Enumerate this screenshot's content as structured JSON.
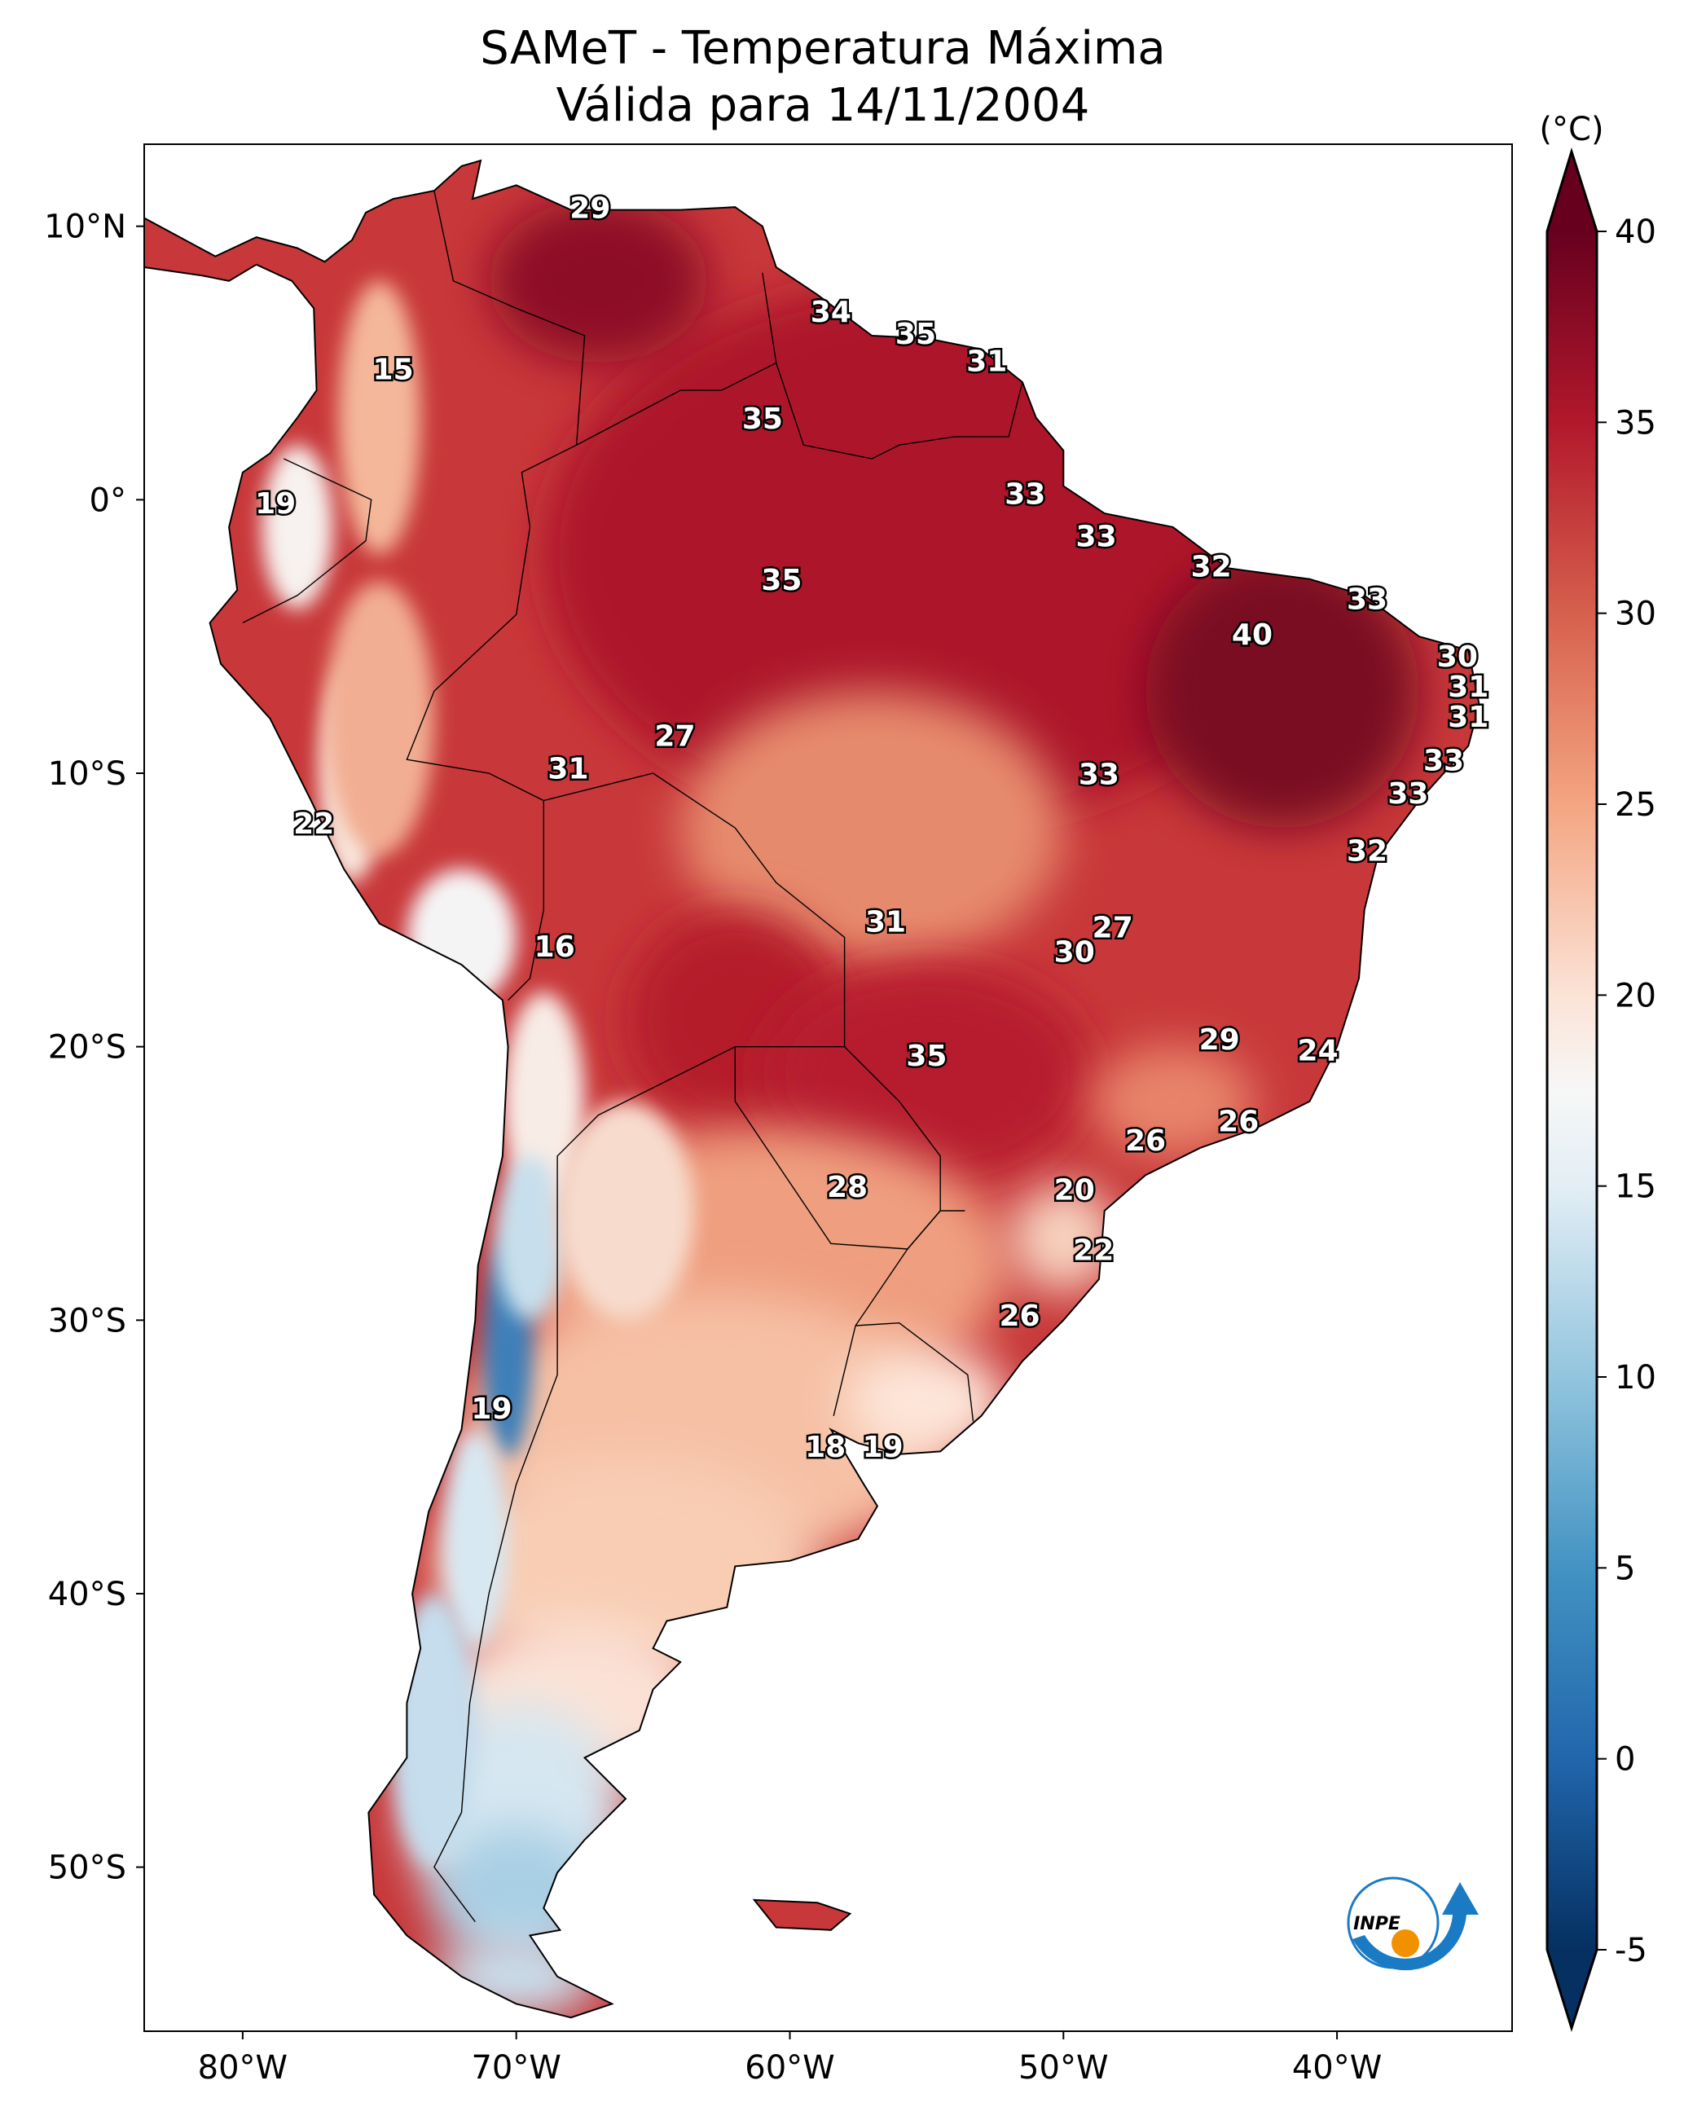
{
  "title": {
    "line1": "SAMeT - Temperatura Máxima",
    "line2": "Válida para 14/11/2004"
  },
  "chart_data": {
    "type": "heatmap",
    "map_region": "South America",
    "variable": "maximum temperature",
    "extent": {
      "lon": [
        -83.6,
        -33.6
      ],
      "lat": [
        -56,
        13
      ]
    },
    "x_ticks": [
      {
        "value": -80,
        "label": "80°W"
      },
      {
        "value": -70,
        "label": "70°W"
      },
      {
        "value": -60,
        "label": "60°W"
      },
      {
        "value": -50,
        "label": "50°W"
      },
      {
        "value": -40,
        "label": "40°W"
      }
    ],
    "y_ticks": [
      {
        "value": 10,
        "label": "10°N"
      },
      {
        "value": 0,
        "label": "0°"
      },
      {
        "value": -10,
        "label": "10°S"
      },
      {
        "value": -20,
        "label": "20°S"
      },
      {
        "value": -30,
        "label": "30°S"
      },
      {
        "value": -40,
        "label": "40°S"
      },
      {
        "value": -50,
        "label": "50°S"
      }
    ],
    "colorbar": {
      "unit": "(°C)",
      "range": [
        -5,
        40
      ],
      "extend": "both",
      "colormap": "RdBu_r",
      "ticks": [
        "40",
        "35",
        "30",
        "25",
        "20",
        "15",
        "10",
        "5",
        "0",
        "-5"
      ],
      "stops": [
        {
          "value": -5,
          "color": "#053061"
        },
        {
          "value": 0,
          "color": "#2166ac"
        },
        {
          "value": 5,
          "color": "#4393c3"
        },
        {
          "value": 10,
          "color": "#92c5de"
        },
        {
          "value": 15,
          "color": "#e3eef5"
        },
        {
          "value": 17.5,
          "color": "#f7f7f7"
        },
        {
          "value": 20,
          "color": "#fbe3d6"
        },
        {
          "value": 25,
          "color": "#f4a582"
        },
        {
          "value": 30,
          "color": "#d6604d"
        },
        {
          "value": 35,
          "color": "#b2182b"
        },
        {
          "value": 40,
          "color": "#67001f"
        }
      ]
    },
    "station_labels": [
      {
        "value": "29",
        "lon": -67.3,
        "lat": 10.6
      },
      {
        "value": "34",
        "lon": -58.5,
        "lat": 6.8
      },
      {
        "value": "35",
        "lon": -55.4,
        "lat": 6.0
      },
      {
        "value": "31",
        "lon": -52.8,
        "lat": 5.0
      },
      {
        "value": "15",
        "lon": -74.5,
        "lat": 4.7
      },
      {
        "value": "35",
        "lon": -61.0,
        "lat": 2.9
      },
      {
        "value": "19",
        "lon": -78.8,
        "lat": -0.2
      },
      {
        "value": "33",
        "lon": -51.4,
        "lat": 0.15
      },
      {
        "value": "33",
        "lon": -48.8,
        "lat": -1.4
      },
      {
        "value": "32",
        "lon": -44.6,
        "lat": -2.5
      },
      {
        "value": "35",
        "lon": -60.3,
        "lat": -3.0
      },
      {
        "value": "33",
        "lon": -38.9,
        "lat": -3.7
      },
      {
        "value": "40",
        "lon": -43.1,
        "lat": -5.0
      },
      {
        "value": "30",
        "lon": -35.6,
        "lat": -5.8
      },
      {
        "value": "31",
        "lon": -35.2,
        "lat": -6.9
      },
      {
        "value": "31",
        "lon": -35.2,
        "lat": -8.0
      },
      {
        "value": "27",
        "lon": -64.2,
        "lat": -8.7
      },
      {
        "value": "31",
        "lon": -68.1,
        "lat": -9.9
      },
      {
        "value": "33",
        "lon": -48.7,
        "lat": -10.1
      },
      {
        "value": "33",
        "lon": -36.1,
        "lat": -9.6
      },
      {
        "value": "33",
        "lon": -37.4,
        "lat": -10.8
      },
      {
        "value": "22",
        "lon": -77.4,
        "lat": -11.9
      },
      {
        "value": "32",
        "lon": -38.9,
        "lat": -12.9
      },
      {
        "value": "31",
        "lon": -56.5,
        "lat": -15.5
      },
      {
        "value": "27",
        "lon": -48.2,
        "lat": -15.7
      },
      {
        "value": "16",
        "lon": -68.6,
        "lat": -16.4
      },
      {
        "value": "30",
        "lon": -49.6,
        "lat": -16.6
      },
      {
        "value": "29",
        "lon": -44.3,
        "lat": -19.8
      },
      {
        "value": "24",
        "lon": -40.7,
        "lat": -20.2
      },
      {
        "value": "35",
        "lon": -55.0,
        "lat": -20.4
      },
      {
        "value": "26",
        "lon": -43.6,
        "lat": -22.8
      },
      {
        "value": "26",
        "lon": -47.0,
        "lat": -23.5
      },
      {
        "value": "28",
        "lon": -57.9,
        "lat": -25.2
      },
      {
        "value": "20",
        "lon": -49.6,
        "lat": -25.3
      },
      {
        "value": "22",
        "lon": -48.9,
        "lat": -27.5
      },
      {
        "value": "26",
        "lon": -51.6,
        "lat": -29.9
      },
      {
        "value": "19",
        "lon": -70.9,
        "lat": -33.3
      },
      {
        "value": "18",
        "lon": -58.7,
        "lat": -34.7
      },
      {
        "value": "19",
        "lon": -56.6,
        "lat": -34.7
      }
    ]
  },
  "logo": {
    "text": "INPE",
    "colors": {
      "blue": "#1a7bc4",
      "orange": "#f29100"
    }
  }
}
